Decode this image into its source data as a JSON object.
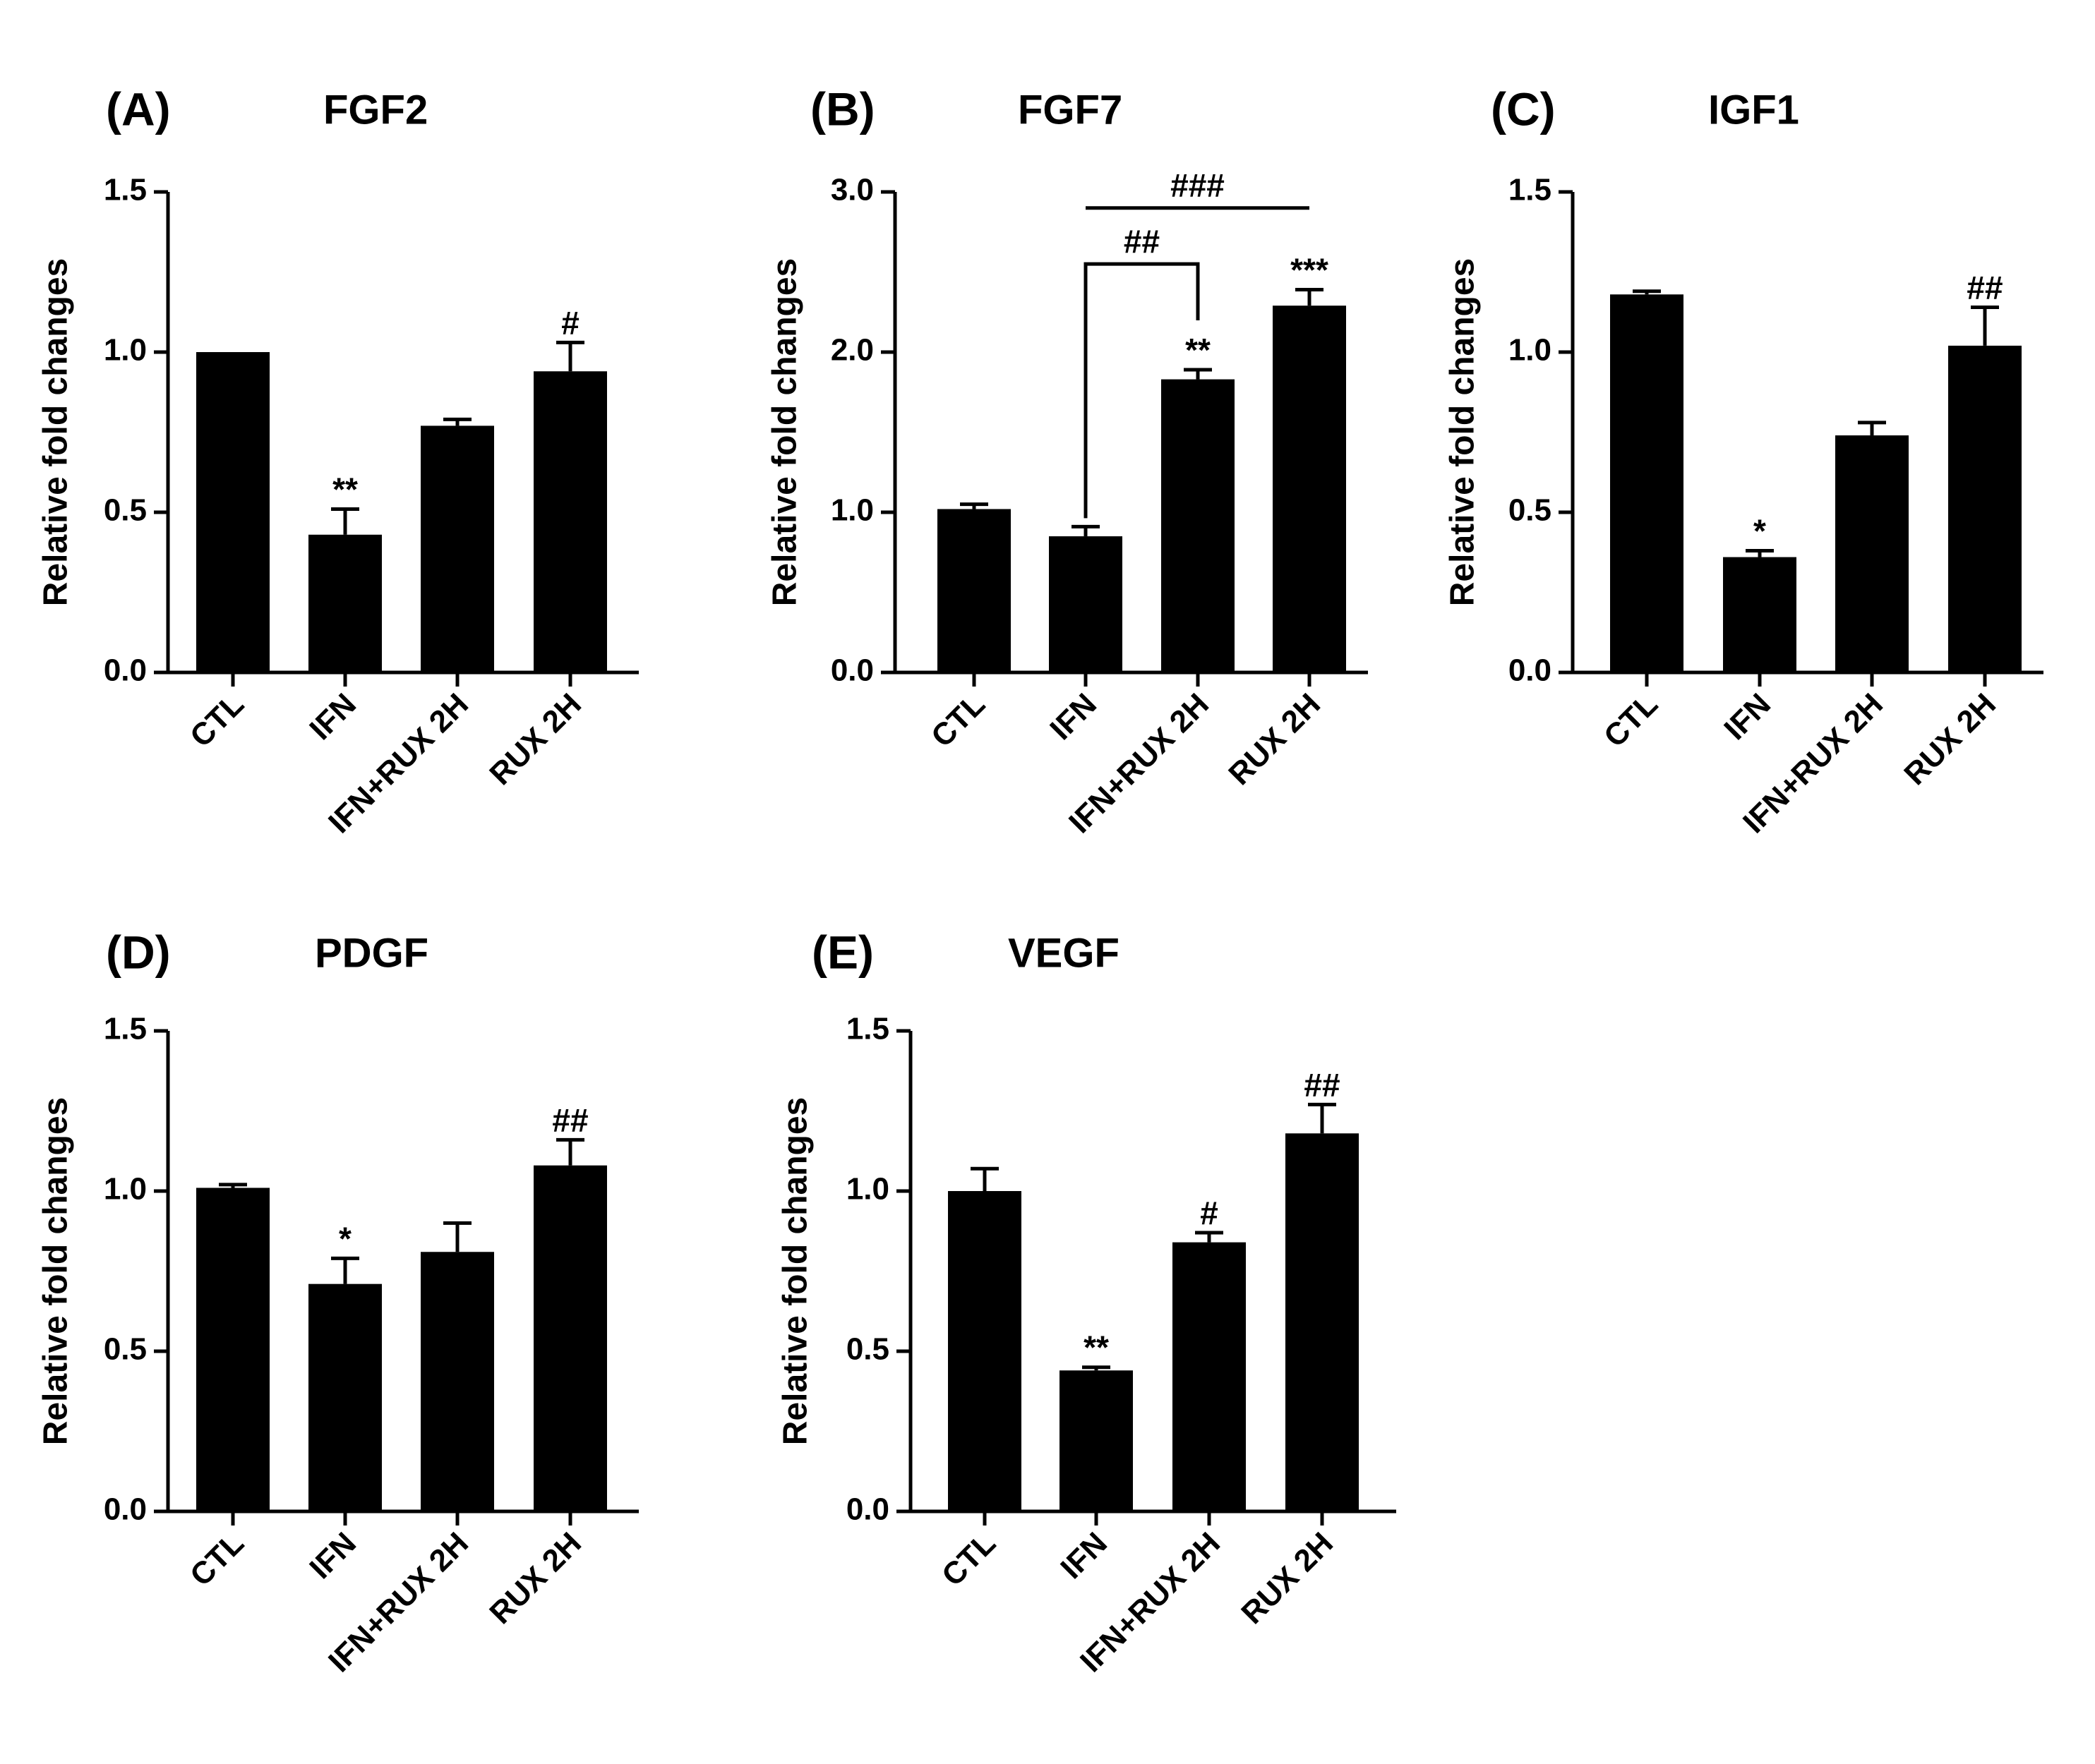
{
  "chart_data": [
    {
      "type": "bar",
      "panel": "(A)",
      "title": "FGF2",
      "ylabel": "Relative fold changes",
      "xlabel": "",
      "ylim": [
        0,
        1.5
      ],
      "yticks": [
        "0.0",
        "0.5",
        "1.0",
        "1.5"
      ],
      "categories": [
        "CTL",
        "IFN",
        "IFN+RUX 2H",
        "RUX 2H"
      ],
      "values": [
        1.0,
        0.43,
        0.77,
        0.94
      ],
      "errors": [
        0.0,
        0.08,
        0.02,
        0.09
      ],
      "annotations": [
        "",
        "**",
        "",
        "#"
      ]
    },
    {
      "type": "bar",
      "panel": "(B)",
      "title": "FGF7",
      "ylabel": "Relative fold changes",
      "xlabel": "",
      "ylim": [
        0,
        3.0
      ],
      "yticks": [
        "0.0",
        "1.0",
        "2.0",
        "3.0"
      ],
      "categories": [
        "CTL",
        "IFN",
        "IFN+RUX 2H",
        "RUX 2H"
      ],
      "values": [
        1.02,
        0.85,
        1.83,
        2.29
      ],
      "errors": [
        0.03,
        0.06,
        0.06,
        0.1
      ],
      "annotations": [
        "",
        "",
        "**",
        "***"
      ],
      "brackets": [
        {
          "from": 1,
          "to": 2,
          "label": "##",
          "y": 2.55
        },
        {
          "from": 1,
          "to": 3,
          "label": "###",
          "y": 2.9
        }
      ]
    },
    {
      "type": "bar",
      "panel": "(C)",
      "title": "IGF1",
      "ylabel": "Relative fold changes",
      "xlabel": "",
      "ylim": [
        0,
        1.5
      ],
      "yticks": [
        "0.0",
        "0.5",
        "1.0",
        "1.5"
      ],
      "categories": [
        "CTL",
        "IFN",
        "IFN+RUX 2H",
        "RUX 2H"
      ],
      "values": [
        1.18,
        0.36,
        0.74,
        1.02
      ],
      "errors": [
        0.01,
        0.02,
        0.04,
        0.12
      ],
      "annotations": [
        "",
        "*",
        "",
        "##"
      ]
    },
    {
      "type": "bar",
      "panel": "(D)",
      "title": "PDGF",
      "ylabel": "Relative fold changes",
      "xlabel": "",
      "ylim": [
        0,
        1.5
      ],
      "yticks": [
        "0.0",
        "0.5",
        "1.0",
        "1.5"
      ],
      "categories": [
        "CTL",
        "IFN",
        "IFN+RUX 2H",
        "RUX 2H"
      ],
      "values": [
        1.01,
        0.71,
        0.81,
        1.08
      ],
      "errors": [
        0.01,
        0.08,
        0.09,
        0.08
      ],
      "annotations": [
        "",
        "*",
        "",
        "##"
      ]
    },
    {
      "type": "bar",
      "panel": "(E)",
      "title": "VEGF",
      "ylabel": "Relative fold changes",
      "xlabel": "",
      "ylim": [
        0,
        1.5
      ],
      "yticks": [
        "0.0",
        "0.5",
        "1.0",
        "1.5"
      ],
      "categories": [
        "CTL",
        "IFN",
        "IFN+RUX 2H",
        "RUX 2H"
      ],
      "values": [
        1.0,
        0.44,
        0.84,
        1.18
      ],
      "errors": [
        0.07,
        0.01,
        0.03,
        0.09
      ],
      "annotations": [
        "",
        "**",
        "#",
        "##"
      ]
    }
  ]
}
